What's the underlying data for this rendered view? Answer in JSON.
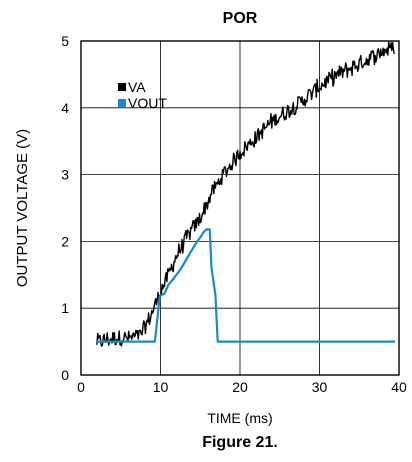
{
  "chart_data": {
    "type": "line",
    "title": "POR",
    "xlabel": "TIME (ms)",
    "ylabel": "OUTPUT VOLTAGE (V)",
    "xlim": [
      0,
      40
    ],
    "ylim": [
      0,
      5
    ],
    "xticks": [
      "0",
      "10",
      "20",
      "30",
      "40"
    ],
    "yticks": [
      "0",
      "1",
      "2",
      "3",
      "4",
      "5"
    ],
    "grid": true,
    "legend": "upper-left",
    "series": [
      {
        "name": "VA",
        "color": "#000000",
        "noisy": true,
        "x": [
          2,
          3,
          4,
          5,
          6,
          7,
          7.5,
          8,
          9,
          10,
          11,
          12,
          13,
          14,
          15,
          16,
          16.5,
          17,
          18,
          19,
          20,
          22,
          24,
          26,
          28,
          30,
          32,
          34,
          36,
          38,
          39.5
        ],
        "y": [
          0.5,
          0.52,
          0.55,
          0.56,
          0.55,
          0.58,
          0.6,
          0.7,
          0.95,
          1.25,
          1.5,
          1.78,
          2.0,
          2.18,
          2.35,
          2.6,
          2.75,
          2.82,
          3.02,
          3.17,
          3.33,
          3.55,
          3.8,
          3.95,
          4.12,
          4.32,
          4.48,
          4.6,
          4.72,
          4.85,
          4.92
        ]
      },
      {
        "name": "VOUT",
        "color": "#1a8ac8",
        "noisy": false,
        "x": [
          2,
          9.3,
          9.9,
          10.5,
          11,
          11.5,
          12,
          12.5,
          13,
          13.5,
          14,
          14.5,
          15,
          15.5,
          15.8,
          16.2,
          16.4,
          16.6,
          16.9,
          17.2,
          39.5
        ],
        "y": [
          0.5,
          0.5,
          1.18,
          1.22,
          1.35,
          1.42,
          1.5,
          1.58,
          1.68,
          1.78,
          1.88,
          1.98,
          2.06,
          2.15,
          2.18,
          2.18,
          1.62,
          1.45,
          1.2,
          0.5,
          0.5
        ]
      }
    ]
  },
  "caption": "Figure 21."
}
